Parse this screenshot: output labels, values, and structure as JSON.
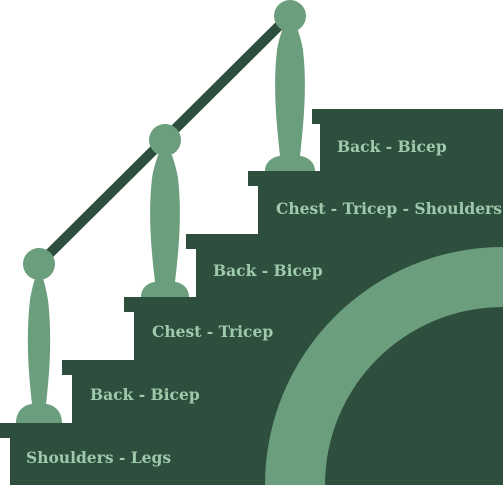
{
  "colors": {
    "background": "#ffffff",
    "stairs": "#2f4f3e",
    "accent": "#6b9e7c",
    "rail": "#2f4f3e",
    "label_text": "#9fc9ab"
  },
  "steps": [
    {
      "label": "Shoulders - Legs"
    },
    {
      "label": "Back - Bicep"
    },
    {
      "label": "Chest - Tricep"
    },
    {
      "label": "Back - Bicep"
    },
    {
      "label": "Chest - Tricep - Shoulders"
    },
    {
      "label": "Back - Bicep"
    }
  ]
}
